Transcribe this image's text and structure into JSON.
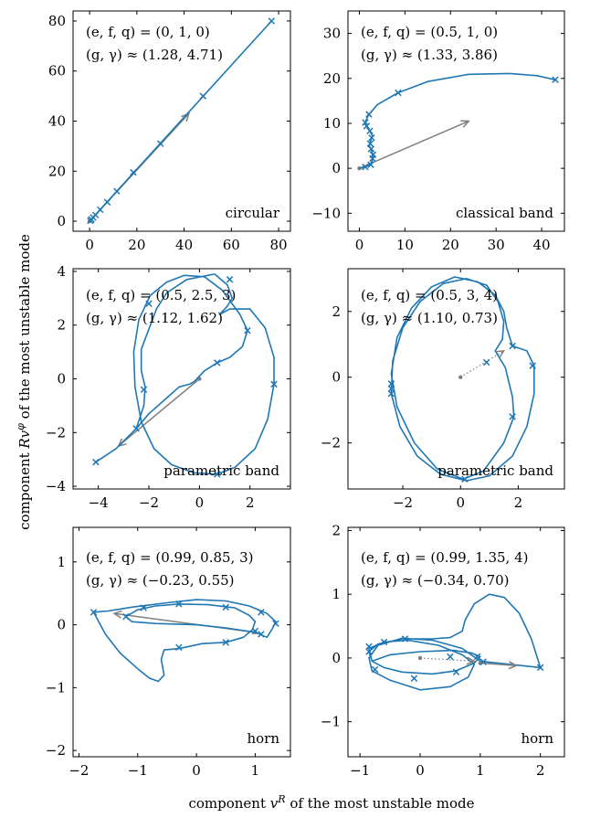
{
  "figure": {
    "xlabel": "component v^R of the most unstable mode",
    "ylabel": "component Rv^φ of the most unstable mode",
    "curve_color": "#1f77b4",
    "arrow_color": "#808080"
  },
  "chart_data": [
    {
      "type": "line",
      "params_text": "(e, f, q) = (0, 1, 0)",
      "growth_text": "(g, γ) ≈ (1.28, 4.71)",
      "label": "circular",
      "xlim": [
        -7,
        85
      ],
      "ylim": [
        -4,
        84
      ],
      "xticks": [
        0,
        20,
        40,
        60,
        80
      ],
      "yticks": [
        0,
        20,
        40,
        60,
        80
      ],
      "curve": [
        [
          0,
          0
        ],
        [
          77,
          80
        ]
      ],
      "markers": [
        [
          0.3,
          0.2
        ],
        [
          0.8,
          0.7
        ],
        [
          1.5,
          1.5
        ],
        [
          2.5,
          2.5
        ],
        [
          4.5,
          4.6
        ],
        [
          7.5,
          7.6
        ],
        [
          11.5,
          12
        ],
        [
          18.5,
          19.5
        ],
        [
          30,
          31
        ],
        [
          48,
          50
        ],
        [
          77,
          80
        ]
      ],
      "arrow": {
        "from": [
          0,
          0
        ],
        "to": [
          42,
          43
        ],
        "style": "solid"
      }
    },
    {
      "type": "line",
      "params_text": "(e, f, q) = (0.5, 1, 0)",
      "growth_text": "(g, γ) ≈ (1.33, 3.86)",
      "label": "classical band",
      "xlim": [
        -2.5,
        45
      ],
      "ylim": [
        -14,
        35
      ],
      "xticks": [
        0,
        10,
        20,
        30,
        40
      ],
      "yticks": [
        -10,
        0,
        10,
        20,
        30
      ],
      "curve": [
        [
          0,
          0
        ],
        [
          0.5,
          0.1
        ],
        [
          1.5,
          0.4
        ],
        [
          2.4,
          0.9
        ],
        [
          2.9,
          1.8
        ],
        [
          3.0,
          2.8
        ],
        [
          2.7,
          3.9
        ],
        [
          2.2,
          5
        ],
        [
          2.5,
          6.2
        ],
        [
          2.9,
          7.2
        ],
        [
          2.3,
          8.3
        ],
        [
          1.6,
          9.3
        ],
        [
          1.3,
          10.2
        ],
        [
          1.6,
          11
        ],
        [
          2.1,
          12
        ],
        [
          4,
          14.2
        ],
        [
          8.5,
          16.8
        ],
        [
          15,
          19.3
        ],
        [
          24,
          20.9
        ],
        [
          33,
          21.1
        ],
        [
          39,
          20.6
        ],
        [
          43,
          19.7
        ]
      ],
      "markers": [
        [
          1.3,
          0.3
        ],
        [
          2.5,
          0.8
        ],
        [
          2.9,
          2.2
        ],
        [
          3.0,
          3.0
        ],
        [
          2.6,
          4.3
        ],
        [
          2.4,
          5.5
        ],
        [
          2.7,
          6.8
        ],
        [
          2.3,
          8.3
        ],
        [
          1.6,
          9.4
        ],
        [
          1.3,
          10.2
        ],
        [
          2.1,
          12
        ],
        [
          8.5,
          16.8
        ],
        [
          43,
          19.7
        ]
      ],
      "arrow": {
        "from": [
          0,
          0
        ],
        "to": [
          24,
          10.5
        ],
        "style": "solid"
      }
    },
    {
      "type": "line",
      "params_text": "(e, f, q) = (0.5, 2.5, 3)",
      "growth_text": "(g, γ) ≈ (1.12, 1.62)",
      "label": "parametric band",
      "xlim": [
        -5,
        3.6
      ],
      "ylim": [
        -4.1,
        4.1
      ],
      "xticks": [
        -4,
        -2,
        0,
        2
      ],
      "yticks": [
        -4,
        -2,
        0,
        2,
        4
      ],
      "curve": [
        [
          -4.1,
          -3.1
        ],
        [
          -3.3,
          -2.6
        ],
        [
          -2.5,
          -1.85
        ],
        [
          -2.2,
          -1.0
        ],
        [
          -2.15,
          -0.3
        ],
        [
          -2.3,
          0.3
        ],
        [
          -2.3,
          1.1
        ],
        [
          -1.7,
          2.6
        ],
        [
          -1.3,
          3.2
        ],
        [
          -0.5,
          3.7
        ],
        [
          0.6,
          3.9
        ],
        [
          1.1,
          3.5
        ],
        [
          1.3,
          3.0
        ],
        [
          1.1,
          2.7
        ],
        [
          0.8,
          2.4
        ],
        [
          1.2,
          2.6
        ],
        [
          2.0,
          2.6
        ],
        [
          2.6,
          1.9
        ],
        [
          2.95,
          0.8
        ],
        [
          2.95,
          -0.2
        ],
        [
          2.7,
          -1.5
        ],
        [
          2.2,
          -2.6
        ],
        [
          1.4,
          -3.3
        ],
        [
          0.7,
          -3.55
        ],
        [
          -0.2,
          -3.5
        ],
        [
          -1.1,
          -3.2
        ],
        [
          -1.8,
          -2.6
        ],
        [
          -2.3,
          -1.6
        ],
        [
          -2.55,
          -0.3
        ],
        [
          -2.6,
          1.0
        ],
        [
          -2.4,
          2.2
        ],
        [
          -1.95,
          3.1
        ],
        [
          -1.3,
          3.6
        ],
        [
          -0.6,
          3.85
        ],
        [
          0.2,
          3.8
        ],
        [
          0.9,
          3.3
        ],
        [
          1.6,
          2.4
        ],
        [
          1.9,
          1.8
        ],
        [
          1.7,
          1.2
        ],
        [
          1.2,
          0.8
        ],
        [
          0.7,
          0.6
        ],
        [
          0.2,
          0.3
        ],
        [
          -0.2,
          -0.1
        ],
        [
          -0.4,
          -0.2
        ],
        [
          -0.8,
          -0.3
        ],
        [
          -1.4,
          -0.8
        ],
        [
          -2.0,
          -1.3
        ],
        [
          -2.5,
          -1.85
        ]
      ],
      "markers": [
        [
          -4.1,
          -3.1
        ],
        [
          -2.5,
          -1.85
        ],
        [
          -2.2,
          -0.4
        ],
        [
          -2.0,
          2.8
        ],
        [
          1.2,
          3.7
        ],
        [
          1.9,
          1.8
        ],
        [
          0.7,
          0.6
        ],
        [
          2.95,
          -0.2
        ],
        [
          0.7,
          -3.55
        ]
      ],
      "arrow": {
        "from": [
          0,
          0
        ],
        "to": [
          -3.2,
          -2.5
        ],
        "style": "solid"
      }
    },
    {
      "type": "line",
      "params_text": "(e, f, q) = (0.5, 3, 4)",
      "growth_text": "(g, γ) ≈ (1.10, 0.73)",
      "label": "parametric band",
      "xlim": [
        -3.9,
        3.6
      ],
      "ylim": [
        -3.4,
        3.3
      ],
      "xticks": [
        -2,
        0,
        2
      ],
      "yticks": [
        -2,
        0,
        2
      ],
      "curve": [
        [
          1.8,
          0.95
        ],
        [
          2.3,
          0.8
        ],
        [
          2.55,
          0.35
        ],
        [
          2.55,
          -0.5
        ],
        [
          2.3,
          -1.5
        ],
        [
          1.8,
          -2.4
        ],
        [
          1.0,
          -3.0
        ],
        [
          0.2,
          -3.15
        ],
        [
          -0.7,
          -2.95
        ],
        [
          -1.5,
          -2.4
        ],
        [
          -2.1,
          -1.5
        ],
        [
          -2.4,
          -0.5
        ],
        [
          -2.35,
          0.5
        ],
        [
          -2.0,
          1.5
        ],
        [
          -1.4,
          2.3
        ],
        [
          -0.6,
          2.85
        ],
        [
          0.2,
          3.0
        ],
        [
          0.9,
          2.8
        ],
        [
          1.3,
          2.3
        ],
        [
          1.5,
          1.7
        ],
        [
          1.45,
          1.15
        ],
        [
          1.2,
          0.8
        ],
        [
          1.55,
          0.3
        ],
        [
          1.8,
          -0.6
        ],
        [
          1.85,
          -1.2
        ],
        [
          1.5,
          -2.0
        ],
        [
          0.8,
          -2.85
        ],
        [
          0.1,
          -3.1
        ],
        [
          -0.8,
          -2.8
        ],
        [
          -1.6,
          -2.0
        ],
        [
          -2.2,
          -0.9
        ],
        [
          -2.4,
          0.1
        ],
        [
          -2.2,
          1.2
        ],
        [
          -1.7,
          2.1
        ],
        [
          -1.0,
          2.75
        ],
        [
          -0.2,
          3.05
        ],
        [
          0.6,
          2.9
        ],
        [
          1.2,
          2.5
        ],
        [
          1.5,
          2.0
        ],
        [
          1.6,
          1.5
        ],
        [
          1.8,
          0.95
        ]
      ],
      "markers": [
        [
          1.8,
          0.95
        ],
        [
          2.5,
          0.35
        ],
        [
          1.8,
          -1.2
        ],
        [
          0.15,
          -3.1
        ],
        [
          0.9,
          0.45
        ],
        [
          -2.4,
          -0.2
        ],
        [
          -2.4,
          -0.35
        ],
        [
          -2.4,
          -0.5
        ]
      ],
      "arrow": {
        "from": [
          0,
          0
        ],
        "to": [
          1.5,
          0.8
        ],
        "style": "dotted"
      }
    },
    {
      "type": "line",
      "params_text": "(e, f, q) = (0.99, 0.85, 3)",
      "growth_text": "(g, γ) ≈ (−0.23, 0.55)",
      "label": "horn",
      "xlim": [
        -2.1,
        1.6
      ],
      "ylim": [
        -2.1,
        1.55
      ],
      "xticks": [
        -2,
        -1,
        0,
        1
      ],
      "yticks": [
        -2,
        -1,
        0,
        1
      ],
      "curve": [
        [
          -1.75,
          0.2
        ],
        [
          -1.55,
          -0.15
        ],
        [
          -1.3,
          -0.45
        ],
        [
          -1.0,
          -0.7
        ],
        [
          -0.8,
          -0.85
        ],
        [
          -0.65,
          -0.9
        ],
        [
          -0.55,
          -0.8
        ],
        [
          -0.6,
          -0.55
        ],
        [
          -0.55,
          -0.4
        ],
        [
          -0.3,
          -0.38
        ],
        [
          0.1,
          -0.3
        ],
        [
          0.5,
          -0.28
        ],
        [
          0.8,
          -0.2
        ],
        [
          0.95,
          -0.08
        ],
        [
          1.0,
          0.05
        ],
        [
          0.9,
          0.15
        ],
        [
          0.65,
          0.27
        ],
        [
          0.2,
          0.32
        ],
        [
          -0.3,
          0.33
        ],
        [
          -0.7,
          0.3
        ],
        [
          -1.0,
          0.24
        ],
        [
          -1.2,
          0.13
        ],
        [
          -1.1,
          0.05
        ],
        [
          -0.7,
          0.02
        ],
        [
          0.0,
          0.0
        ],
        [
          0.5,
          -0.05
        ],
        [
          1.0,
          -0.12
        ],
        [
          1.2,
          -0.2
        ],
        [
          1.3,
          -0.05
        ],
        [
          1.35,
          0.05
        ],
        [
          1.2,
          0.18
        ],
        [
          0.9,
          0.3
        ],
        [
          0.5,
          0.38
        ],
        [
          0.0,
          0.4
        ],
        [
          -0.5,
          0.35
        ],
        [
          -1.1,
          0.28
        ],
        [
          -1.5,
          0.22
        ],
        [
          -1.75,
          0.2
        ]
      ],
      "markers": [
        [
          -1.75,
          0.2
        ],
        [
          -1.2,
          0.13
        ],
        [
          -0.9,
          0.27
        ],
        [
          -0.3,
          0.33
        ],
        [
          0.5,
          0.28
        ],
        [
          1.1,
          0.2
        ],
        [
          1.35,
          0.02
        ],
        [
          1.0,
          -0.1
        ],
        [
          1.1,
          -0.15
        ],
        [
          -0.3,
          -0.36
        ],
        [
          0.5,
          -0.28
        ]
      ],
      "arrow": {
        "from": [
          1.0,
          -0.12
        ],
        "to": [
          -1.4,
          0.18
        ],
        "style": "solid"
      }
    },
    {
      "type": "line",
      "params_text": "(e, f, q) = (0.99, 1.35, 4)",
      "growth_text": "(g, γ) ≈ (−0.34, 0.70)",
      "label": "horn",
      "xlim": [
        -1.2,
        2.4
      ],
      "ylim": [
        -1.55,
        2.05
      ],
      "xticks": [
        -1,
        0,
        1,
        2
      ],
      "yticks": [
        -1,
        0,
        1,
        2
      ],
      "curve": [
        [
          2.0,
          -0.15
        ],
        [
          1.85,
          0.3
        ],
        [
          1.65,
          0.7
        ],
        [
          1.4,
          0.95
        ],
        [
          1.15,
          1.0
        ],
        [
          0.9,
          0.85
        ],
        [
          0.75,
          0.6
        ],
        [
          0.7,
          0.42
        ],
        [
          0.5,
          0.32
        ],
        [
          0.2,
          0.3
        ],
        [
          -0.3,
          0.3
        ],
        [
          -0.7,
          0.22
        ],
        [
          -0.85,
          0.1
        ],
        [
          -0.8,
          -0.05
        ],
        [
          -0.6,
          -0.15
        ],
        [
          -0.3,
          -0.22
        ],
        [
          0.2,
          -0.25
        ],
        [
          0.6,
          -0.2
        ],
        [
          0.9,
          -0.08
        ],
        [
          1.0,
          0.02
        ],
        [
          0.85,
          0.08
        ],
        [
          0.55,
          0.12
        ],
        [
          0.0,
          0.1
        ],
        [
          -0.5,
          0.05
        ],
        [
          -0.8,
          -0.05
        ],
        [
          -0.85,
          0.15
        ],
        [
          -0.6,
          0.25
        ],
        [
          -0.2,
          0.28
        ],
        [
          0.3,
          0.2
        ],
        [
          0.7,
          0.05
        ],
        [
          0.9,
          -0.1
        ],
        [
          0.8,
          -0.3
        ],
        [
          0.5,
          -0.45
        ],
        [
          0.0,
          -0.5
        ],
        [
          -0.5,
          -0.35
        ],
        [
          -0.8,
          -0.2
        ],
        [
          -0.85,
          0.0
        ],
        [
          -0.7,
          0.2
        ],
        [
          -0.3,
          0.31
        ],
        [
          0.2,
          0.28
        ],
        [
          0.7,
          0.15
        ],
        [
          1.0,
          -0.05
        ],
        [
          1.5,
          -0.1
        ],
        [
          2.0,
          -0.15
        ]
      ],
      "markers": [
        [
          2.0,
          -0.15
        ],
        [
          0.95,
          0.02
        ],
        [
          0.6,
          -0.22
        ],
        [
          -0.1,
          -0.32
        ],
        [
          -0.75,
          -0.18
        ],
        [
          -0.85,
          0.1
        ],
        [
          -0.85,
          0.18
        ],
        [
          -0.6,
          0.25
        ],
        [
          -0.25,
          0.3
        ],
        [
          0.5,
          0.02
        ],
        [
          1.05,
          -0.06
        ]
      ],
      "arrow": {
        "from": [
          0,
          0
        ],
        "to": [
          0.9,
          -0.05
        ],
        "style": "dotted",
        "extra": {
          "from": [
            1.0,
            -0.08
          ],
          "to": [
            1.6,
            -0.12
          ]
        }
      }
    }
  ]
}
